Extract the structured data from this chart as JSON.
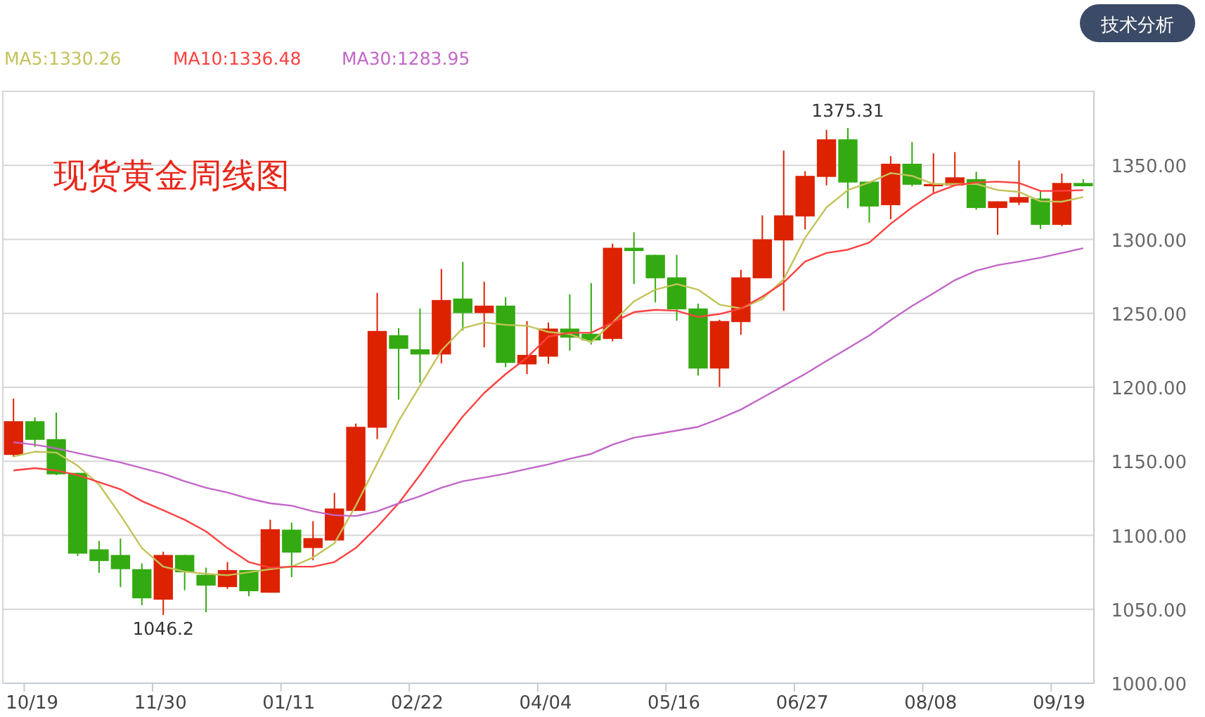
{
  "chart_data": {
    "type": "candlestick",
    "title": "现货黄金周线图",
    "annotations": [
      "技术分析",
      {
        "text": "1046.2",
        "y": 1046.2
      },
      {
        "text": "1375.31",
        "y": 1375.31
      }
    ],
    "categories": [
      null,
      "10/19",
      null,
      null,
      null,
      null,
      null,
      "11/30",
      null,
      null,
      null,
      null,
      null,
      "01/11",
      null,
      null,
      null,
      null,
      null,
      "02/22",
      null,
      null,
      null,
      null,
      null,
      "04/04",
      null,
      null,
      null,
      null,
      null,
      "05/16",
      null,
      null,
      null,
      null,
      null,
      "06/27",
      null,
      null,
      null,
      null,
      null,
      "08/08",
      null,
      null,
      null,
      null,
      null,
      "09/19",
      null
    ],
    "ohlc": [
      [
        1154.3,
        1192.4,
        1153,
        1177.1
      ],
      [
        1177.1,
        1179.7,
        1159.7,
        1164.5
      ],
      [
        1165,
        1182.9,
        1140.7,
        1141.2
      ],
      [
        1142.2,
        1142.2,
        1086,
        1087.6
      ],
      [
        1090.5,
        1096.2,
        1074.6,
        1082.6
      ],
      [
        1086.7,
        1097.8,
        1065,
        1077.1
      ],
      [
        1077.1,
        1081,
        1052.7,
        1057.4
      ],
      [
        1056.5,
        1088.9,
        1046.2,
        1086.7
      ],
      [
        1086.7,
        1086.7,
        1062.9,
        1075
      ],
      [
        1073.3,
        1078.1,
        1047.9,
        1066
      ],
      [
        1065,
        1081.9,
        1063.8,
        1076.5
      ],
      [
        1076.5,
        1076.5,
        1058.8,
        1062.2
      ],
      [
        1061.2,
        1110.5,
        1061.2,
        1104.1
      ],
      [
        1103.8,
        1108.6,
        1071.7,
        1088.3
      ],
      [
        1091.4,
        1109.5,
        1083.1,
        1098.1
      ],
      [
        1096.5,
        1128.6,
        1096.5,
        1118.1
      ],
      [
        1116.5,
        1175.5,
        1116.5,
        1173.3
      ],
      [
        1172.7,
        1263.8,
        1165,
        1238.1
      ],
      [
        1235.2,
        1240,
        1191.7,
        1226
      ],
      [
        1225.7,
        1253.3,
        1203.1,
        1222.2
      ],
      [
        1222.2,
        1280,
        1216.2,
        1259
      ],
      [
        1260,
        1284.8,
        1238.4,
        1250.2
      ],
      [
        1250.2,
        1271.4,
        1227,
        1255.2
      ],
      [
        1255.2,
        1261,
        1213.6,
        1216.5
      ],
      [
        1215.5,
        1244.8,
        1208.9,
        1221.9
      ],
      [
        1220.7,
        1243.8,
        1215.9,
        1239.7
      ],
      [
        1239.7,
        1262.9,
        1224.8,
        1233.6
      ],
      [
        1236.2,
        1270.5,
        1228.9,
        1231.7
      ],
      [
        1232.7,
        1297.1,
        1231.1,
        1294.3
      ],
      [
        1294.3,
        1304.8,
        1269.8,
        1292.1
      ],
      [
        1289.5,
        1289.5,
        1257.4,
        1273.7
      ],
      [
        1274.3,
        1289.5,
        1245,
        1252.7
      ],
      [
        1253.3,
        1256.5,
        1207.9,
        1212.7
      ],
      [
        1212.7,
        1245.7,
        1200.3,
        1244.8
      ],
      [
        1244.1,
        1279.4,
        1235.5,
        1274.3
      ],
      [
        1273.7,
        1316.2,
        1273.7,
        1300
      ],
      [
        1299.3,
        1360,
        1251.7,
        1316.2
      ],
      [
        1315.5,
        1346,
        1306.7,
        1342.9
      ],
      [
        1342.2,
        1374,
        1336.5,
        1367.6
      ],
      [
        1367.6,
        1375.31,
        1321,
        1338.4
      ],
      [
        1339,
        1339,
        1311.4,
        1322.2
      ],
      [
        1323.1,
        1356.2,
        1313.6,
        1351.1
      ],
      [
        1351.1,
        1365.7,
        1335.9,
        1336.9
      ],
      [
        1335.9,
        1358.1,
        1330.8,
        1337.4
      ],
      [
        1336.5,
        1359,
        1336.5,
        1341.9
      ],
      [
        1340.7,
        1345.7,
        1320,
        1321.2
      ],
      [
        1321.2,
        1325.7,
        1303.1,
        1325.7
      ],
      [
        1324.8,
        1353.3,
        1323.2,
        1328.6
      ],
      [
        1327.6,
        1332.7,
        1307,
        1309.8
      ],
      [
        1309.8,
        1344.5,
        1308.9,
        1338.1
      ],
      [
        1338.1,
        1340.7,
        1335.9,
        1335.9
      ]
    ],
    "colors": [
      "#dd2200",
      "#33aa11",
      "#33aa11",
      "#33aa11",
      "#33aa11",
      "#33aa11",
      "#33aa11",
      "#dd2200",
      "#33aa11",
      "#33aa11",
      "#dd2200",
      "#33aa11",
      "#dd2200",
      "#33aa11",
      "#dd2200",
      "#dd2200",
      "#dd2200",
      "#dd2200",
      "#33aa11",
      "#33aa11",
      "#dd2200",
      "#33aa11",
      "#dd2200",
      "#33aa11",
      "#dd2200",
      "#dd2200",
      "#33aa11",
      "#33aa11",
      "#dd2200",
      "#33aa11",
      "#33aa11",
      "#33aa11",
      "#33aa11",
      "#dd2200",
      "#dd2200",
      "#dd2200",
      "#dd2200",
      "#dd2200",
      "#dd2200",
      "#33aa11",
      "#33aa11",
      "#dd2200",
      "#33aa11",
      "#dd2200",
      "#dd2200",
      "#33aa11",
      "#dd2200",
      "#dd2200",
      "#33aa11",
      "#dd2200",
      "#33aa11"
    ],
    "series": [
      {
        "type": "line",
        "name": "MA5:1330.26",
        "color": "#c3c35a",
        "values": [
          1153.3,
          1156.5,
          1155.9,
          1147,
          1134.3,
          1113.6,
          1091.4,
          1078.8,
          1075.5,
          1074,
          1073,
          1075,
          1077.1,
          1078.8,
          1085,
          1094.6,
          1120,
          1148.6,
          1177.1,
          1201,
          1224.8,
          1240,
          1243.8,
          1242.2,
          1241.6,
          1237.4,
          1235.9,
          1230.5,
          1243.8,
          1258.1,
          1266,
          1269.8,
          1266,
          1255.9,
          1253.3,
          1259.7,
          1273,
          1301,
          1321.6,
          1333.3,
          1338.4,
          1344.8,
          1342.9,
          1337.4,
          1337.4,
          1337.4,
          1333.3,
          1332.1,
          1325.7,
          1325.4,
          1328.6
        ]
      },
      {
        "type": "line",
        "name": "MA10:1336.48",
        "color": "#ff4040",
        "values": [
          1143.8,
          1145.4,
          1143.8,
          1140.7,
          1135.9,
          1131.1,
          1123.1,
          1116.9,
          1110.5,
          1102.6,
          1091.4,
          1081.9,
          1078.1,
          1078.8,
          1078.8,
          1081.9,
          1091.4,
          1105.7,
          1121.6,
          1140.7,
          1161.2,
          1180.3,
          1196.2,
          1208.9,
          1220,
          1234.3,
          1236.9,
          1236.9,
          1243.8,
          1250.8,
          1252.4,
          1251.7,
          1247.6,
          1249.5,
          1253.3,
          1261.3,
          1270.8,
          1285,
          1290.8,
          1293,
          1297.8,
          1310.5,
          1321.6,
          1331.1,
          1336.5,
          1338.4,
          1339,
          1338.1,
          1332.7,
          1332.7,
          1333.3
        ]
      },
      {
        "type": "line",
        "name": "MA30:1283.95",
        "color": "#c266c8",
        "values": [
          1162.9,
          1161.2,
          1158.7,
          1155.5,
          1152.4,
          1149.2,
          1145.4,
          1141.6,
          1136.5,
          1132.1,
          1128.9,
          1124.8,
          1121.6,
          1120,
          1116.2,
          1113.6,
          1113,
          1116.2,
          1121.6,
          1126.4,
          1132.1,
          1136.5,
          1139,
          1141.6,
          1144.8,
          1147.9,
          1151.7,
          1155,
          1161.2,
          1166,
          1168.3,
          1170.8,
          1173.3,
          1178.8,
          1185,
          1193,
          1201,
          1209,
          1217.8,
          1226.4,
          1235,
          1245.4,
          1255,
          1263.5,
          1272.4,
          1278.8,
          1282.6,
          1285,
          1287.6,
          1290.8,
          1294
        ]
      }
    ],
    "ylim": [
      1000,
      1400
    ],
    "yticks": [
      {
        "value": 1000,
        "label": "1000.00"
      },
      {
        "value": 1050,
        "label": "1050.00"
      },
      {
        "value": 1100,
        "label": "1100.00"
      },
      {
        "value": 1150,
        "label": "1150.00"
      },
      {
        "value": 1200,
        "label": "1200.00"
      },
      {
        "value": 1250,
        "label": "1250.00"
      },
      {
        "value": 1300,
        "label": "1300.00"
      },
      {
        "value": 1350,
        "label": "1350.00"
      }
    ],
    "grid": "y",
    "legend": "top left",
    "line_style": "solid",
    "marker": "none"
  }
}
